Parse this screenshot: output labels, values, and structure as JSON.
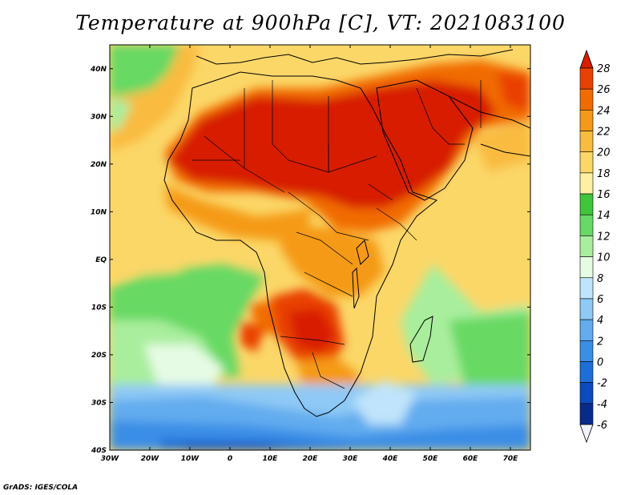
{
  "title": "Temperature at 900hPa [C], VT: 2021083100",
  "footer": "GrADS: IGES/COLA",
  "map": {
    "lon_range": [
      -30,
      75
    ],
    "lat_range": [
      -40,
      45
    ],
    "lon_ticks": [
      {
        "value": -30,
        "label": "30W"
      },
      {
        "value": -20,
        "label": "20W"
      },
      {
        "value": -10,
        "label": "10W"
      },
      {
        "value": 0,
        "label": "0"
      },
      {
        "value": 10,
        "label": "10E"
      },
      {
        "value": 20,
        "label": "20E"
      },
      {
        "value": 30,
        "label": "30E"
      },
      {
        "value": 40,
        "label": "40E"
      },
      {
        "value": 50,
        "label": "50E"
      },
      {
        "value": 60,
        "label": "60E"
      },
      {
        "value": 70,
        "label": "70E"
      }
    ],
    "lat_ticks": [
      {
        "value": 40,
        "label": "40N"
      },
      {
        "value": 30,
        "label": "30N"
      },
      {
        "value": 20,
        "label": "20N"
      },
      {
        "value": 10,
        "label": "10N"
      },
      {
        "value": 0,
        "label": "EQ"
      },
      {
        "value": -10,
        "label": "10S"
      },
      {
        "value": -20,
        "label": "20S"
      },
      {
        "value": -30,
        "label": "30S"
      },
      {
        "value": -40,
        "label": "40S"
      }
    ]
  },
  "colorbar": {
    "levels": [
      "28",
      "26",
      "24",
      "22",
      "20",
      "18",
      "16",
      "14",
      "12",
      "10",
      "8",
      "6",
      "4",
      "2",
      "0",
      "-2",
      "-4",
      "-6"
    ],
    "colors": [
      "#d71e00",
      "#e94100",
      "#f16c00",
      "#f59a18",
      "#f9bb40",
      "#fbd768",
      "#fdf0a0",
      "#3fc63a",
      "#68d964",
      "#a9ee9d",
      "#e6fbe4",
      "#bfe4fb",
      "#8fc9f5",
      "#62acef",
      "#3a8ee6",
      "#1e6ed8",
      "#0a4bbd",
      "#082b8a",
      "#f2f2ff"
    ]
  }
}
